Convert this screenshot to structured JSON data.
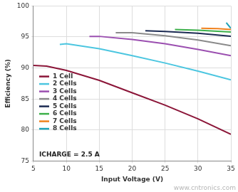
{
  "chart_data": {
    "type": "line",
    "x_label": "Input Voltage (V)",
    "y_label": "Efficiency (%)",
    "annotations": [
      "ICHARGE = 2.5 A"
    ],
    "watermark": "www.cntronics.com",
    "xlim": [
      5,
      35
    ],
    "xticks": [
      5,
      10,
      15,
      20,
      25,
      30,
      35
    ],
    "ylim": [
      75,
      100
    ],
    "yticks": [
      75,
      80,
      85,
      90,
      95,
      100
    ],
    "grid": true,
    "legend": "bottom-left",
    "series": [
      {
        "name": "1 Cell",
        "color": "#8b1538",
        "x": [
          5,
          7,
          10,
          15,
          20,
          25,
          30,
          35
        ],
        "values": [
          90.4,
          90.3,
          89.6,
          88.0,
          86.0,
          84.0,
          81.8,
          79.3
        ]
      },
      {
        "name": "2 Cells",
        "color": "#4cc6e0",
        "x": [
          9,
          10,
          15,
          20,
          25,
          30,
          35
        ],
        "values": [
          93.8,
          93.9,
          93.1,
          92.0,
          90.8,
          89.5,
          88.1
        ]
      },
      {
        "name": "3 Cells",
        "color": "#9b4fb0",
        "x": [
          13.5,
          15,
          20,
          25,
          30,
          35
        ],
        "values": [
          95.1,
          95.1,
          94.6,
          93.9,
          93.0,
          92.0
        ]
      },
      {
        "name": "4 Cells",
        "color": "#8a8a8a",
        "x": [
          17.5,
          20,
          25,
          30,
          35
        ],
        "values": [
          95.7,
          95.7,
          95.2,
          94.5,
          93.6
        ]
      },
      {
        "name": "5 Cells",
        "color": "#1b2a52",
        "x": [
          22,
          25,
          30,
          35
        ],
        "values": [
          96.0,
          95.9,
          95.6,
          95.1
        ]
      },
      {
        "name": "6 Cells",
        "color": "#3cb04a",
        "x": [
          26.5,
          30,
          35
        ],
        "values": [
          96.2,
          96.1,
          95.8
        ]
      },
      {
        "name": "7 Cells",
        "color": "#f0821e",
        "x": [
          30.5,
          33,
          35
        ],
        "values": [
          96.4,
          96.35,
          96.2
        ]
      },
      {
        "name": "8 Cells",
        "color": "#1fa3b8",
        "x": [
          34.3,
          35
        ],
        "values": [
          97.3,
          96.4
        ]
      }
    ]
  }
}
